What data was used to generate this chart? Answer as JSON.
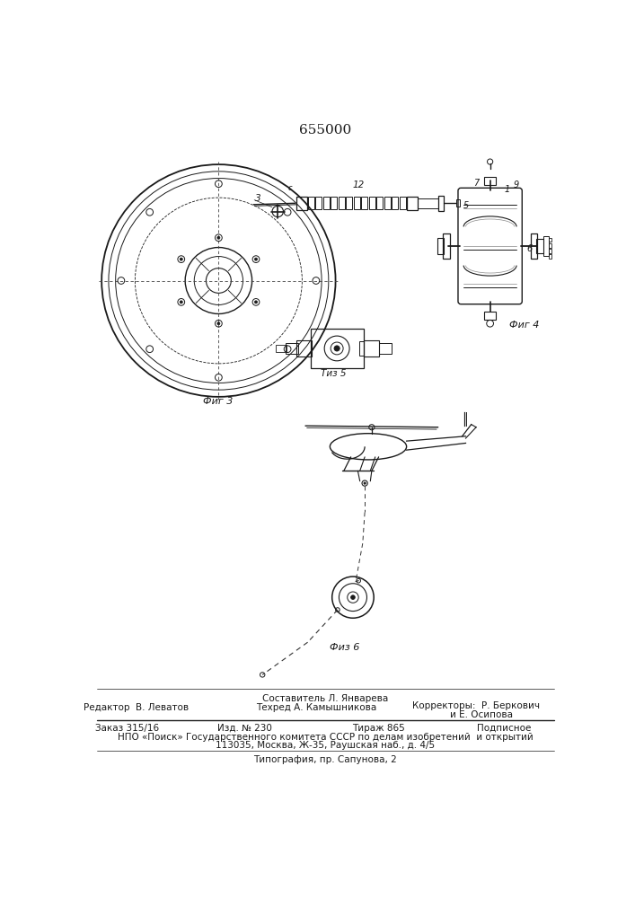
{
  "title": "655000",
  "bg_color": "#ffffff",
  "line_color": "#1a1a1a",
  "fig3_label": "Фиг 3",
  "fig4_label": "Фиг 4",
  "fig5_label": "Тиз 5",
  "fig6_label": "Физ 6",
  "footer_sestavitel": "Составитель Л. Январева",
  "footer_redaktor": "Редактор  В. Леватов",
  "footer_tehred": "Техред А. Камышникова",
  "footer_korrektory": "Корректоры:  Р. Беркович",
  "footer_korrektory2": "и Е. Осипова",
  "footer_box1": "Заказ 315/16",
  "footer_box2": "Изд. № 230",
  "footer_box3": "Тираж 865",
  "footer_box4": "Подписное",
  "footer_npo": "НПО «Поиск» Государственного комитета СССР по делам изобретений  и открытий",
  "footer_address": "113035, Москва, Ж-35, Раушская наб., д. 4/5",
  "footer_typo": "Типография, пр. Сапунова, 2"
}
